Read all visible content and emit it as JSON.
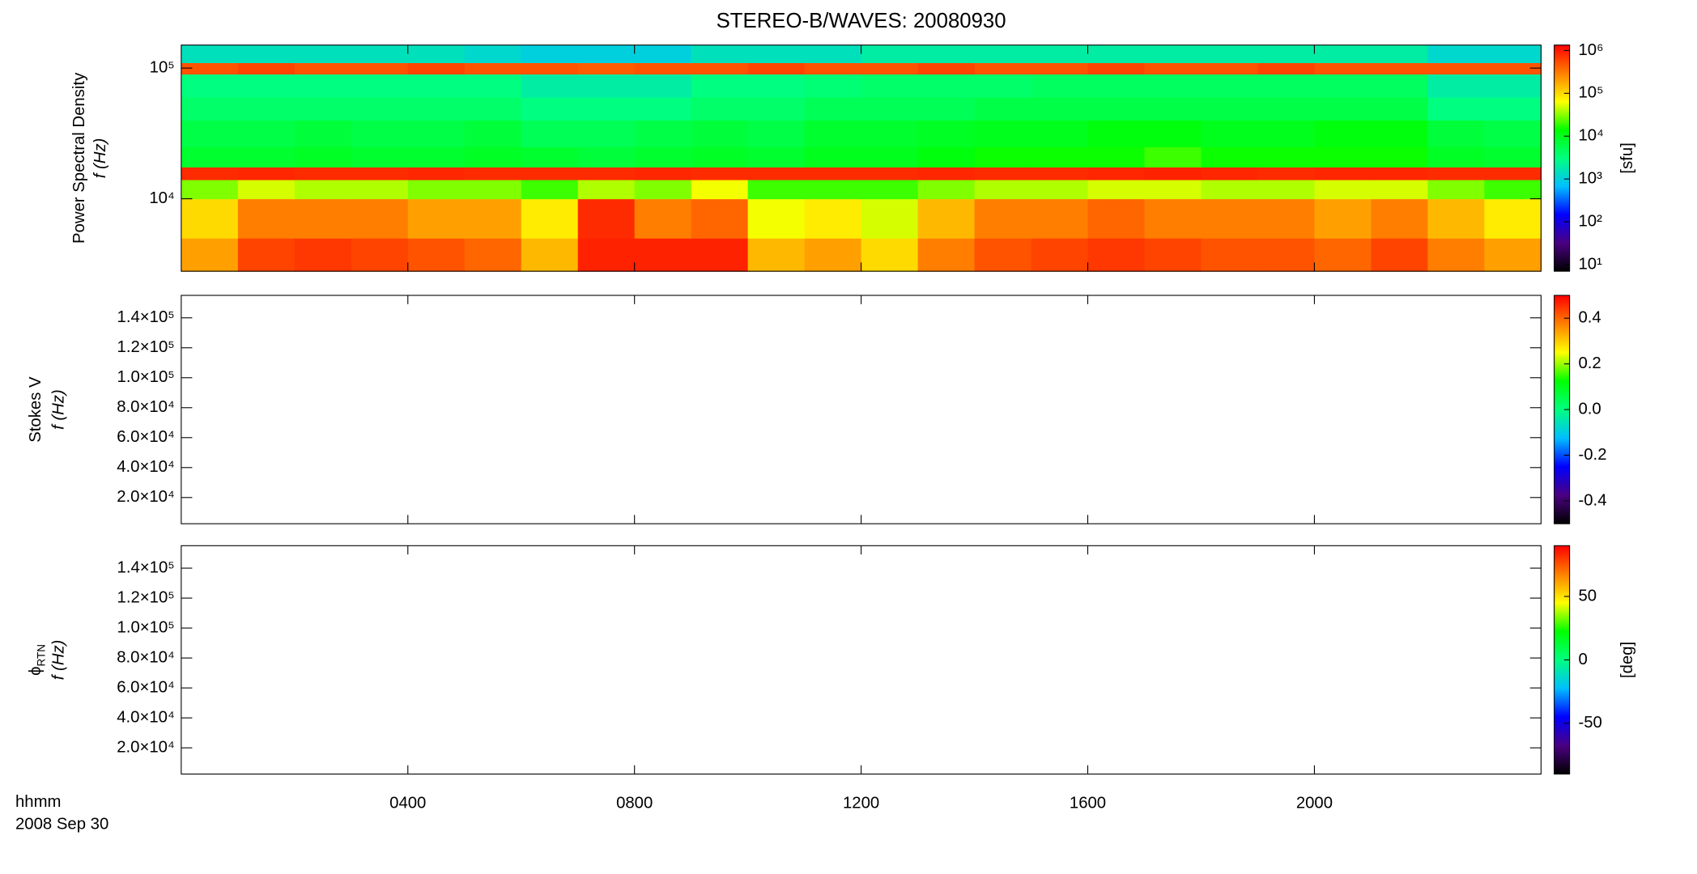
{
  "chart_data": [
    {
      "type": "heatmap",
      "title": "STEREO-B/WAVES: 20080930",
      "ylabel": "Power Spectral Density",
      "ylabel2": "f (Hz)",
      "xedges": [
        0,
        1,
        2,
        3,
        4,
        5,
        6,
        7,
        8,
        9,
        10,
        11,
        12,
        13,
        14,
        15,
        16,
        17,
        18,
        19,
        20,
        21,
        22,
        23,
        24
      ],
      "yedges": [
        2790,
        5000,
        10000,
        14000,
        17500,
        25000,
        40000,
        60000,
        90000,
        110000,
        150000
      ],
      "values": [
        [
          200000,
          600000,
          700000,
          600000,
          500000,
          400000,
          150000,
          900000,
          900000,
          900000,
          150000,
          200000,
          100000,
          300000,
          500000,
          600000,
          700000,
          600000,
          500000,
          500000,
          400000,
          600000,
          300000,
          200000
        ],
        [
          100000,
          300000,
          300000,
          300000,
          200000,
          200000,
          80000,
          800000,
          300000,
          400000,
          60000,
          80000,
          50000,
          150000,
          300000,
          300000,
          400000,
          300000,
          300000,
          300000,
          200000,
          300000,
          150000,
          80000
        ],
        [
          30000,
          50000,
          40000,
          40000,
          30000,
          30000,
          20000,
          40000,
          30000,
          60000,
          20000,
          20000,
          20000,
          30000,
          40000,
          40000,
          50000,
          50000,
          40000,
          40000,
          50000,
          50000,
          30000,
          20000
        ],
        [
          800000,
          850000,
          800000,
          800000,
          850000,
          800000,
          800000,
          800000,
          850000,
          800000,
          800000,
          800000,
          800000,
          850000,
          800000,
          800000,
          850000,
          900000,
          850000,
          800000,
          850000,
          850000,
          800000,
          800000
        ],
        [
          8000,
          8000,
          9000,
          8000,
          8000,
          9000,
          8000,
          7000,
          8000,
          9000,
          8000,
          10000,
          10000,
          12000,
          15000,
          15000,
          15000,
          20000,
          15000,
          15000,
          15000,
          15000,
          9000,
          8000
        ],
        [
          6000,
          6000,
          7000,
          6000,
          6000,
          7000,
          5000,
          5000,
          6000,
          7000,
          6000,
          8000,
          8000,
          9000,
          10000,
          10000,
          12000,
          12000,
          10000,
          10000,
          12000,
          12000,
          7000,
          6000
        ],
        [
          4000,
          4000,
          4000,
          4000,
          4000,
          4000,
          3000,
          3000,
          3000,
          4000,
          4000,
          5000,
          5000,
          5000,
          6000,
          6000,
          6000,
          6000,
          6000,
          6000,
          6000,
          6000,
          3000,
          3000
        ],
        [
          3000,
          3000,
          3000,
          3000,
          3000,
          3000,
          2000,
          2000,
          2000,
          3000,
          3000,
          3500,
          4000,
          4000,
          4000,
          4500,
          4500,
          4500,
          4500,
          4500,
          4500,
          4500,
          2000,
          2000
        ],
        [
          500000,
          600000,
          500000,
          500000,
          600000,
          500000,
          500000,
          450000,
          500000,
          500000,
          600000,
          500000,
          500000,
          600000,
          500000,
          500000,
          600000,
          500000,
          500000,
          600000,
          500000,
          500000,
          500000,
          500000
        ],
        [
          1500,
          1500,
          1500,
          1500,
          1500,
          1200,
          1000,
          1000,
          1000,
          1500,
          1500,
          1500,
          2000,
          2000,
          2000,
          2000,
          2000,
          2000,
          2000,
          2000,
          2000,
          2000,
          1200,
          1200
        ]
      ],
      "xlim": [
        0,
        24
      ],
      "ylim": [
        2790,
        150000
      ],
      "ylog": true,
      "xticks": [
        {
          "value": 4,
          "label": "0400"
        },
        {
          "value": 8,
          "label": "0800"
        },
        {
          "value": 12,
          "label": "1200"
        },
        {
          "value": 16,
          "label": "1600"
        },
        {
          "value": 20,
          "label": "2000"
        }
      ],
      "yticks": [
        {
          "value": 10000,
          "label": "10⁴"
        },
        {
          "value": 100000,
          "label": "10⁵"
        }
      ],
      "clim": [
        7,
        1340000
      ],
      "clog": true,
      "clabel": "[sfu]",
      "cticks": [
        {
          "value": 10,
          "label": "10¹"
        },
        {
          "value": 100,
          "label": "10²"
        },
        {
          "value": 1000,
          "label": "10³"
        },
        {
          "value": 10000,
          "label": "10⁴"
        },
        {
          "value": 100000,
          "label": "10⁵"
        },
        {
          "value": 1000000,
          "label": "10⁶"
        }
      ],
      "colormap": [
        "#000000",
        "#4b0082",
        "#0000ff",
        "#00bfff",
        "#00ff7f",
        "#00ff00",
        "#ffff00",
        "#ff8000",
        "#ff0000"
      ]
    },
    {
      "type": "heatmap",
      "ylabel": "Stokes V",
      "ylabel2": "f (Hz)",
      "xlim": [
        0,
        24
      ],
      "ylim": [
        2500,
        155000
      ],
      "xticks": [
        {
          "value": 4,
          "label": "0400"
        },
        {
          "value": 8,
          "label": "0800"
        },
        {
          "value": 12,
          "label": "1200"
        },
        {
          "value": 16,
          "label": "1600"
        },
        {
          "value": 20,
          "label": "2000"
        }
      ],
      "yticks": [
        {
          "value": 20000,
          "label": "2.0×10⁴"
        },
        {
          "value": 40000,
          "label": "4.0×10⁴"
        },
        {
          "value": 60000,
          "label": "6.0×10⁴"
        },
        {
          "value": 80000,
          "label": "8.0×10⁴"
        },
        {
          "value": 100000,
          "label": "1.0×10⁵"
        },
        {
          "value": 120000,
          "label": "1.2×10⁵"
        },
        {
          "value": 140000,
          "label": "1.4×10⁵"
        }
      ],
      "clim": [
        -0.5,
        0.5
      ],
      "cticks": [
        -0.4,
        -0.2,
        {
          "value": 0,
          "label": "0.0"
        },
        0.2,
        0.4
      ],
      "colormap": [
        "#000000",
        "#4b0082",
        "#0000ff",
        "#00bfff",
        "#00ff7f",
        "#00ff00",
        "#ffff00",
        "#ff8000",
        "#ff0000"
      ]
    },
    {
      "type": "heatmap",
      "ylabel": "ϕ",
      "ylabel_sub": "RTN",
      "ylabel2": "f (Hz)",
      "xlabel": "hhmm",
      "date_label": "2008 Sep 30",
      "xlim": [
        0,
        24
      ],
      "ylim": [
        2500,
        155000
      ],
      "xticks": [
        {
          "value": 4,
          "label": "0400"
        },
        {
          "value": 8,
          "label": "0800"
        },
        {
          "value": 12,
          "label": "1200"
        },
        {
          "value": 16,
          "label": "1600"
        },
        {
          "value": 20,
          "label": "2000"
        }
      ],
      "yticks": [
        {
          "value": 20000,
          "label": "2.0×10⁴"
        },
        {
          "value": 40000,
          "label": "4.0×10⁴"
        },
        {
          "value": 60000,
          "label": "6.0×10⁴"
        },
        {
          "value": 80000,
          "label": "8.0×10⁴"
        },
        {
          "value": 100000,
          "label": "1.0×10⁵"
        },
        {
          "value": 120000,
          "label": "1.2×10⁵"
        },
        {
          "value": 140000,
          "label": "1.4×10⁵"
        }
      ],
      "clim": [
        -90,
        90
      ],
      "clabel": "[deg]",
      "cticks": [
        -50,
        0,
        50
      ],
      "colormap": [
        "#000000",
        "#4b0082",
        "#0000ff",
        "#00bfff",
        "#00ff7f",
        "#00ff00",
        "#ffff00",
        "#ff8000",
        "#ff0000"
      ]
    }
  ]
}
